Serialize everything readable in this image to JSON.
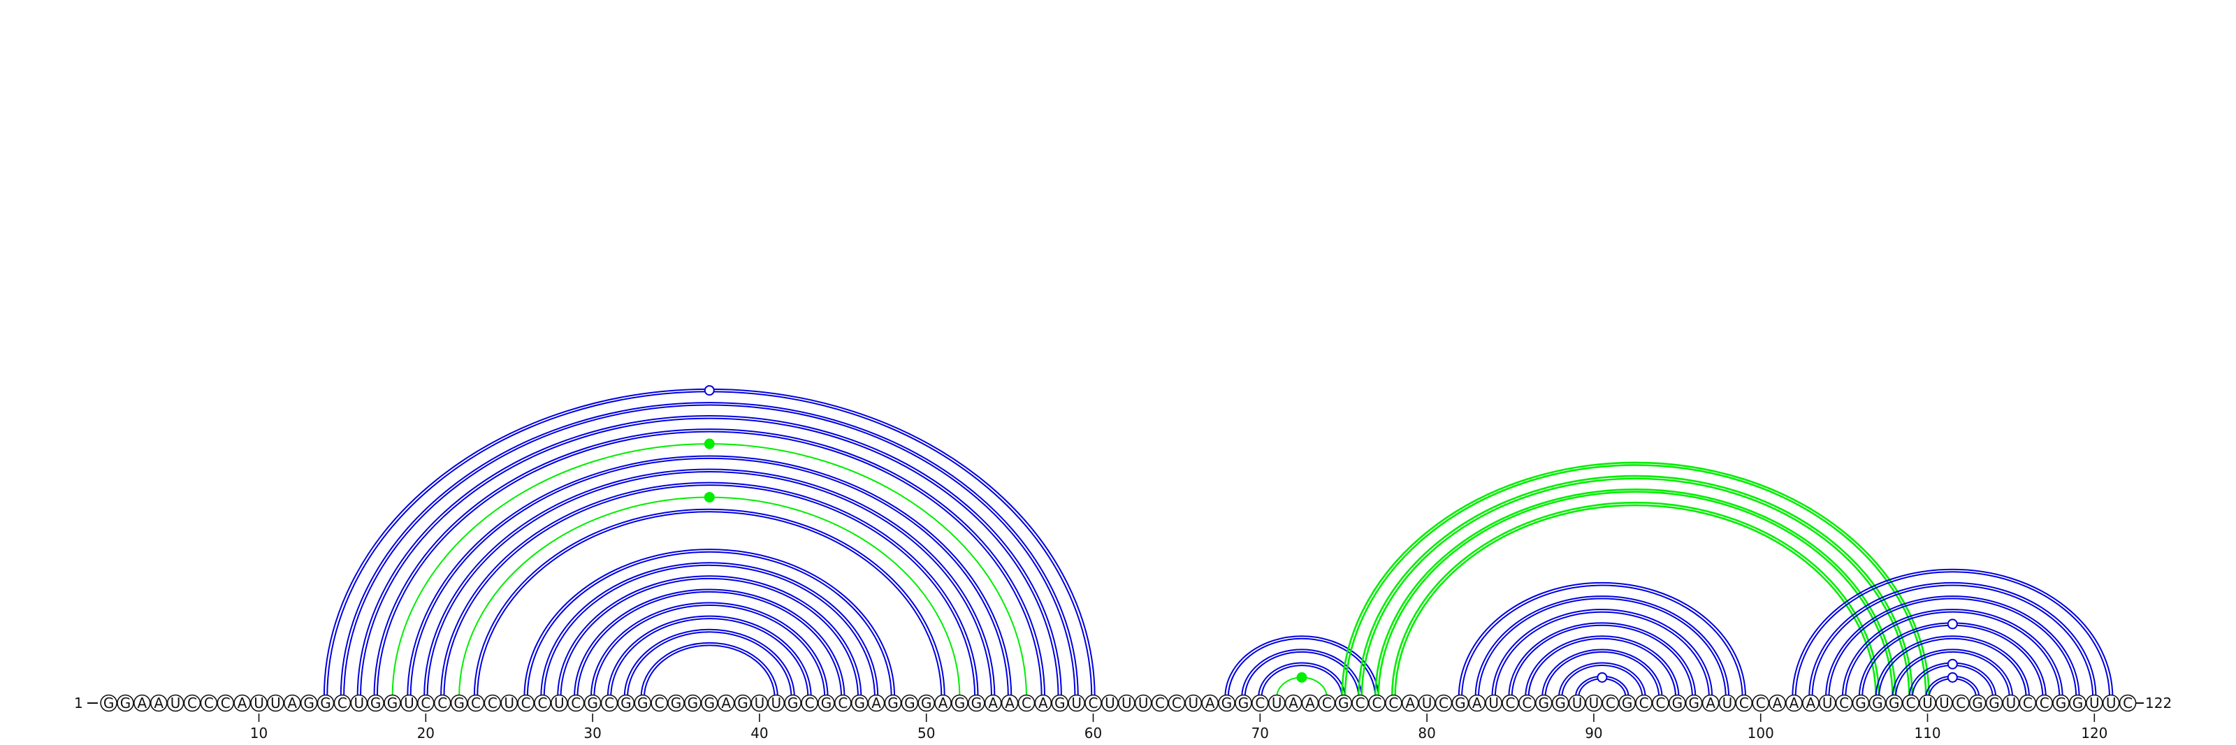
{
  "sequence": "GGAAUCCCAUUAGGCUGGUCCGCCUCCUCGCGGCGGGAGUUGCGCGAGGGAGGAACAGUCUUUCCUAGGCUAACGCCCAUCGAUCCGGUUCGCCGGAUCCAAAUCGGGCUUCGGUCCGGUUC",
  "start_label": "1",
  "end_label": "122",
  "position_ticks": [
    "10",
    "20",
    "30",
    "40",
    "50",
    "60",
    "70",
    "80",
    "90",
    "100",
    "110",
    "120"
  ],
  "colors": {
    "pair": "#0000dd",
    "highlight": "#00ee00",
    "text": "#111111",
    "background": "#ffffff"
  },
  "arc_groups": [
    {
      "left": [
        14,
        15,
        16,
        17,
        18,
        19,
        20,
        21,
        22,
        23
      ],
      "right": [
        60,
        59,
        58,
        57,
        56,
        55,
        54,
        53,
        52,
        51
      ],
      "color": "pair",
      "green": [
        18,
        22
      ],
      "open_marker": 14,
      "green_marker": [
        18,
        22
      ]
    },
    {
      "left": [
        26,
        27,
        28,
        29,
        30,
        31,
        32,
        33
      ],
      "right": [
        48,
        47,
        46,
        45,
        44,
        43,
        42,
        41
      ],
      "color": "pair"
    },
    {
      "left": [
        68,
        69,
        70,
        71
      ],
      "right": [
        77,
        76,
        75,
        74
      ],
      "color": "pair",
      "green": [
        71
      ],
      "green_marker": [
        71
      ]
    },
    {
      "left": [
        75,
        76,
        77,
        78
      ],
      "right": [
        110,
        109,
        108,
        107
      ],
      "color": "highlight"
    },
    {
      "left": [
        82,
        83,
        84,
        85,
        86,
        87,
        88,
        89
      ],
      "right": [
        99,
        98,
        97,
        96,
        95,
        94,
        93,
        92
      ],
      "color": "pair",
      "open_marker": 89
    },
    {
      "left": [
        102,
        103,
        104,
        105,
        106,
        107,
        108,
        109,
        110
      ],
      "right": [
        121,
        120,
        119,
        118,
        117,
        116,
        115,
        114,
        113
      ],
      "color": "pair",
      "open_marker_list": [
        106,
        109,
        110
      ]
    }
  ]
}
